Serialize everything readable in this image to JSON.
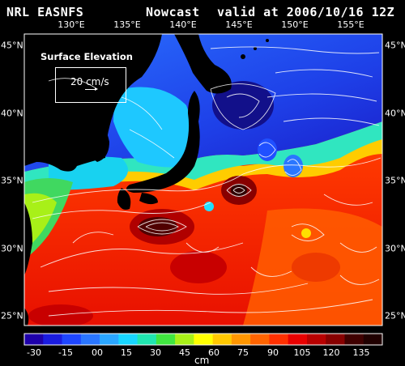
{
  "header": {
    "source": "NRL EASNFS",
    "product": "Nowcast",
    "valid": "valid at 2006/10/16 12Z"
  },
  "longitude_labels": [
    "130°E",
    "135°E",
    "140°E",
    "145°E",
    "150°E",
    "155°E"
  ],
  "latitude_labels_left": [
    "45°N",
    "40°N",
    "35°N",
    "30°N",
    "25°N"
  ],
  "latitude_labels_right": [
    "45°N",
    "40°N",
    "35°N",
    "30°N",
    "25°N"
  ],
  "legend": {
    "title": "Surface Elevation",
    "speed": "20 cm/s"
  },
  "colorbar": {
    "tick_labels": [
      "-30",
      "-15",
      "00",
      "15",
      "30",
      "45",
      "60",
      "75",
      "90",
      "105",
      "120",
      "135"
    ],
    "unit": "cm",
    "colors": [
      "#1e00aa",
      "#1a1ce0",
      "#1e46ff",
      "#2a76ff",
      "#2aa6ff",
      "#18d6ff",
      "#20e6b0",
      "#40e640",
      "#a8f018",
      "#ffff00",
      "#ffc800",
      "#ff9600",
      "#ff6400",
      "#ff3000",
      "#e80000",
      "#b80000",
      "#880000",
      "#400000",
      "#200000"
    ]
  }
}
